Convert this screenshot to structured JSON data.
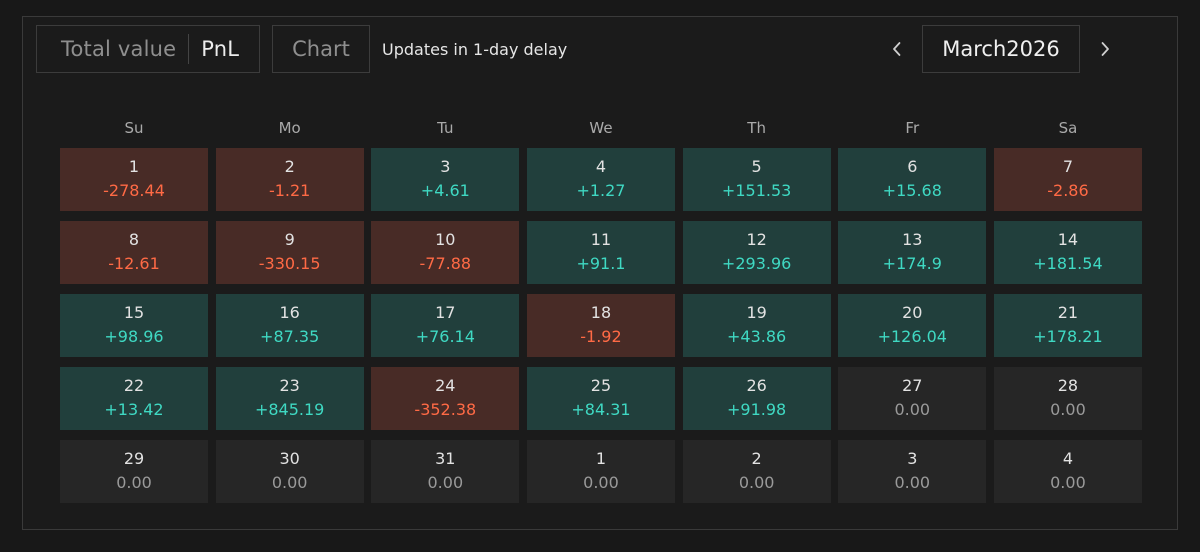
{
  "toolbar": {
    "total_value_label": "Total value",
    "pnl_label": "PnL",
    "chart_label": "Chart",
    "delay_text": "Updates in 1-day delay",
    "month_label": "March2026"
  },
  "colors": {
    "negative_bg": "#482b26",
    "positive_bg": "#213f3c",
    "zero_bg": "#262626",
    "negative_text": "#ff6a45",
    "positive_text": "#3fd9c3"
  },
  "weekdays": [
    "Su",
    "Mo",
    "Tu",
    "We",
    "Th",
    "Fr",
    "Sa"
  ],
  "days": [
    {
      "day": "1",
      "value": "-278.44",
      "status": "neg"
    },
    {
      "day": "2",
      "value": "-1.21",
      "status": "neg"
    },
    {
      "day": "3",
      "value": "+4.61",
      "status": "pos"
    },
    {
      "day": "4",
      "value": "+1.27",
      "status": "pos"
    },
    {
      "day": "5",
      "value": "+151.53",
      "status": "pos"
    },
    {
      "day": "6",
      "value": "+15.68",
      "status": "pos"
    },
    {
      "day": "7",
      "value": "-2.86",
      "status": "neg"
    },
    {
      "day": "8",
      "value": "-12.61",
      "status": "neg"
    },
    {
      "day": "9",
      "value": "-330.15",
      "status": "neg"
    },
    {
      "day": "10",
      "value": "-77.88",
      "status": "neg"
    },
    {
      "day": "11",
      "value": "+91.1",
      "status": "pos"
    },
    {
      "day": "12",
      "value": "+293.96",
      "status": "pos"
    },
    {
      "day": "13",
      "value": "+174.9",
      "status": "pos"
    },
    {
      "day": "14",
      "value": "+181.54",
      "status": "pos"
    },
    {
      "day": "15",
      "value": "+98.96",
      "status": "pos"
    },
    {
      "day": "16",
      "value": "+87.35",
      "status": "pos"
    },
    {
      "day": "17",
      "value": "+76.14",
      "status": "pos"
    },
    {
      "day": "18",
      "value": "-1.92",
      "status": "neg"
    },
    {
      "day": "19",
      "value": "+43.86",
      "status": "pos"
    },
    {
      "day": "20",
      "value": "+126.04",
      "status": "pos"
    },
    {
      "day": "21",
      "value": "+178.21",
      "status": "pos"
    },
    {
      "day": "22",
      "value": "+13.42",
      "status": "pos"
    },
    {
      "day": "23",
      "value": "+845.19",
      "status": "pos"
    },
    {
      "day": "24",
      "value": "-352.38",
      "status": "neg"
    },
    {
      "day": "25",
      "value": "+84.31",
      "status": "pos"
    },
    {
      "day": "26",
      "value": "+91.98",
      "status": "pos"
    },
    {
      "day": "27",
      "value": "0.00",
      "status": "zero"
    },
    {
      "day": "28",
      "value": "0.00",
      "status": "zero"
    },
    {
      "day": "29",
      "value": "0.00",
      "status": "zero"
    },
    {
      "day": "30",
      "value": "0.00",
      "status": "zero"
    },
    {
      "day": "31",
      "value": "0.00",
      "status": "zero"
    },
    {
      "day": "1",
      "value": "0.00",
      "status": "zero"
    },
    {
      "day": "2",
      "value": "0.00",
      "status": "zero"
    },
    {
      "day": "3",
      "value": "0.00",
      "status": "zero"
    },
    {
      "day": "4",
      "value": "0.00",
      "status": "zero"
    }
  ]
}
